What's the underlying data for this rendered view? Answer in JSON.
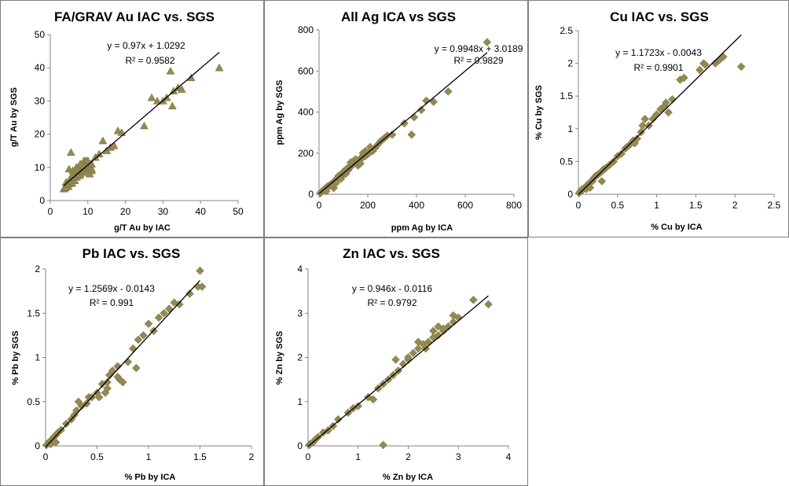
{
  "chart_data": [
    {
      "type": "scatter",
      "title": "FA/GRAV Au IAC vs. SGS",
      "xlabel": "g/T Au by IAC",
      "ylabel": "g/T Au by SGS",
      "xlim": [
        0,
        50
      ],
      "ylim": [
        0,
        50
      ],
      "xticks": [
        "0",
        "10",
        "20",
        "30",
        "40",
        "50"
      ],
      "yticks": [
        "0",
        "10",
        "20",
        "30",
        "40",
        "50"
      ],
      "equation": "y = 0.97x + 1.0292",
      "r2": "R² = 0.9582",
      "marker": "triangle",
      "trend": {
        "slope": 0.97,
        "intercept": 1.0292,
        "x0": 3.5,
        "x1": 45
      },
      "x": [
        3.6,
        4,
        4.4,
        4.8,
        5,
        5.2,
        5.5,
        5.8,
        6,
        6.2,
        6.5,
        6.8,
        7,
        7.2,
        7.5,
        7.8,
        8,
        8.2,
        8.5,
        8.8,
        9,
        9.3,
        9.6,
        10,
        10.3,
        10.7,
        11,
        4,
        4.5,
        5,
        5.5,
        6,
        6.5,
        7,
        7.5,
        8,
        8.5,
        9,
        9.5,
        10,
        10.5,
        11,
        4.2,
        5.5,
        6.7,
        8,
        9.2,
        10.5,
        5,
        6,
        7,
        8,
        9,
        10,
        11,
        12,
        13,
        14,
        15,
        16,
        17,
        18,
        19,
        25,
        27,
        28.5,
        30,
        31,
        32,
        32.5,
        32.8,
        34,
        35,
        37.5,
        45
      ],
      "y": [
        3.5,
        3.8,
        4.5,
        4.2,
        5,
        5.5,
        6,
        5.2,
        6.5,
        7,
        6,
        7.5,
        7,
        8,
        8.5,
        7.5,
        8,
        9,
        9.5,
        8.5,
        9,
        10,
        9.5,
        10,
        10.5,
        11,
        9.5,
        4,
        5,
        6,
        7,
        8,
        9,
        10,
        10,
        11,
        11,
        12,
        12,
        11,
        10,
        9,
        5.5,
        14.5,
        9.5,
        10.5,
        11.5,
        8,
        9.5,
        9,
        10,
        11,
        10.5,
        12,
        11,
        13,
        14,
        18,
        15,
        16,
        16.5,
        21,
        20.5,
        22.5,
        31,
        30,
        30,
        31,
        39,
        28.5,
        33,
        34,
        33.5,
        37,
        40
      ]
    },
    {
      "type": "scatter",
      "title": "All Ag ICA vs SGS",
      "xlabel": "ppm Ag by ICA",
      "ylabel": "ppm Ag by SGS",
      "xlim": [
        0,
        800
      ],
      "ylim": [
        0,
        800
      ],
      "xticks": [
        "0",
        "200",
        "400",
        "600",
        "800"
      ],
      "yticks": [
        "0",
        "200",
        "400",
        "600",
        "800"
      ],
      "equation": "y = 0.9948x + 3.0189",
      "r2": "R² = 0.9829",
      "marker": "diamond",
      "trend": {
        "slope": 0.9948,
        "intercept": 3.0189,
        "x0": 0,
        "x1": 690
      },
      "x": [
        5,
        10,
        15,
        20,
        25,
        30,
        35,
        40,
        45,
        50,
        55,
        60,
        65,
        70,
        75,
        80,
        85,
        90,
        95,
        100,
        105,
        110,
        115,
        120,
        125,
        130,
        135,
        140,
        150,
        160,
        170,
        180,
        190,
        200,
        210,
        220,
        230,
        240,
        250,
        260,
        270,
        280,
        300,
        350,
        380,
        390,
        420,
        440,
        470,
        530,
        690,
        60,
        80,
        100,
        120,
        140,
        160,
        180,
        70,
        90,
        110,
        130,
        150,
        170,
        190,
        210,
        30,
        50
      ],
      "y": [
        5,
        12,
        18,
        22,
        28,
        30,
        38,
        40,
        44,
        50,
        53,
        60,
        66,
        72,
        75,
        85,
        88,
        95,
        90,
        105,
        110,
        100,
        125,
        118,
        130,
        135,
        140,
        145,
        155,
        160,
        175,
        180,
        185,
        195,
        205,
        210,
        225,
        240,
        255,
        265,
        275,
        285,
        290,
        345,
        290,
        375,
        410,
        455,
        450,
        500,
        740,
        30,
        90,
        110,
        130,
        160,
        140,
        200,
        55,
        75,
        120,
        155,
        170,
        150,
        210,
        230,
        15,
        45
      ]
    },
    {
      "type": "scatter",
      "title": "Cu IAC vs. SGS",
      "xlabel": "% Cu by ICA",
      "ylabel": "% Cu by SGS",
      "xlim": [
        0,
        2.5
      ],
      "ylim": [
        0,
        2.5
      ],
      "xticks": [
        "0",
        "0.5",
        "1",
        "1.5",
        "2",
        "2.5"
      ],
      "yticks": [
        "0",
        "0.5",
        "1",
        "1.5",
        "2",
        "2.5"
      ],
      "equation": "y = 1.1723x - 0.0043",
      "r2": "R² = 0.9901",
      "marker": "diamond",
      "trend": {
        "slope": 1.1723,
        "intercept": -0.0043,
        "x0": 0,
        "x1": 2.08
      },
      "x": [
        0.01,
        0.03,
        0.05,
        0.08,
        0.1,
        0.12,
        0.15,
        0.18,
        0.2,
        0.22,
        0.25,
        0.28,
        0.3,
        0.32,
        0.35,
        0.4,
        0.45,
        0.5,
        0.55,
        0.6,
        0.62,
        0.65,
        0.7,
        0.72,
        0.75,
        0.8,
        0.82,
        0.85,
        0.9,
        0.95,
        1,
        1.05,
        1.1,
        1.12,
        1.15,
        1.2,
        1.3,
        1.35,
        1.55,
        1.6,
        1.62,
        1.75,
        1.8,
        1.85,
        2.08,
        0.05,
        0.1,
        0.15,
        0.3
      ],
      "y": [
        0.02,
        0.05,
        0.06,
        0.1,
        0.12,
        0.15,
        0.18,
        0.2,
        0.25,
        0.28,
        0.3,
        0.33,
        0.35,
        0.38,
        0.4,
        0.45,
        0.5,
        0.58,
        0.62,
        0.7,
        0.72,
        0.75,
        0.82,
        0.78,
        0.85,
        0.95,
        1.05,
        1.15,
        1.05,
        1.15,
        1.22,
        1.3,
        1.35,
        1.4,
        1.25,
        1.45,
        1.75,
        1.78,
        1.9,
        2,
        1.98,
        2,
        2.05,
        2.1,
        1.95,
        0.08,
        0.08,
        0.1,
        0.2
      ]
    },
    {
      "type": "scatter",
      "title": "Pb IAC vs. SGS",
      "xlabel": "% Pb by ICA",
      "ylabel": "% Pb by SGS",
      "xlim": [
        0,
        2
      ],
      "ylim": [
        0,
        2
      ],
      "xticks": [
        "0",
        "0.5",
        "1",
        "1.5",
        "2"
      ],
      "yticks": [
        "0",
        "0.5",
        "1",
        "1.5",
        "2"
      ],
      "equation": "y = 1.2569x - 0.0143",
      "r2": "R² = 0.991",
      "marker": "diamond",
      "trend": {
        "slope": 1.2569,
        "intercept": -0.0143,
        "x0": 0,
        "x1": 1.5
      },
      "x": [
        0.01,
        0.03,
        0.05,
        0.07,
        0.1,
        0.12,
        0.15,
        0.2,
        0.25,
        0.28,
        0.3,
        0.32,
        0.35,
        0.4,
        0.42,
        0.45,
        0.5,
        0.52,
        0.55,
        0.58,
        0.6,
        0.62,
        0.65,
        0.7,
        0.72,
        0.75,
        0.8,
        0.85,
        0.88,
        0.9,
        0.95,
        1,
        1.05,
        1.1,
        1.15,
        1.2,
        1.25,
        1.3,
        1.4,
        1.48,
        1.5,
        1.52,
        0.05,
        0.08,
        0.1,
        0.6,
        0.7
      ],
      "y": [
        0.01,
        0.04,
        0.06,
        0.08,
        0.12,
        0.15,
        0.18,
        0.25,
        0.3,
        0.35,
        0.4,
        0.5,
        0.45,
        0.48,
        0.55,
        0.55,
        0.6,
        0.55,
        0.7,
        0.6,
        0.65,
        0.8,
        0.85,
        0.9,
        0.75,
        0.72,
        0.95,
        1.1,
        0.88,
        1.2,
        1.25,
        1.38,
        1.3,
        1.45,
        1.5,
        1.55,
        1.62,
        1.6,
        1.72,
        1.8,
        1.98,
        1.8,
        0.02,
        0.1,
        0.04,
        0.72,
        0.78
      ]
    },
    {
      "type": "scatter",
      "title": "Zn IAC vs. SGS",
      "xlabel": "% Zn by ICA",
      "ylabel": "% Zn by SGS",
      "xlim": [
        0,
        4
      ],
      "ylim": [
        0,
        4
      ],
      "xticks": [
        "0",
        "1",
        "2",
        "3",
        "4"
      ],
      "yticks": [
        "0",
        "1",
        "2",
        "3",
        "4"
      ],
      "equation": "y = 0.946x - 0.0116",
      "r2": "R² = 0.9792",
      "marker": "diamond",
      "trend": {
        "slope": 0.946,
        "intercept": -0.0116,
        "x0": 0,
        "x1": 3.6
      },
      "x": [
        0.02,
        0.05,
        0.1,
        0.15,
        0.2,
        0.3,
        0.4,
        0.5,
        0.6,
        0.8,
        0.9,
        1,
        1.2,
        1.3,
        1.4,
        1.5,
        1.6,
        1.7,
        1.8,
        1.9,
        2,
        2.1,
        2.2,
        2.3,
        2.4,
        2.5,
        2.6,
        2.7,
        2.8,
        2.9,
        3,
        3.3,
        3.6,
        1.5,
        2.2,
        2.5,
        2.7,
        2.9,
        1.75,
        2.0,
        2.35,
        2.6
      ],
      "y": [
        0.02,
        0.05,
        0.08,
        0.15,
        0.2,
        0.3,
        0.35,
        0.45,
        0.6,
        0.75,
        0.85,
        0.9,
        1.1,
        1.05,
        1.3,
        1.4,
        1.5,
        1.6,
        1.7,
        1.85,
        1.95,
        2.1,
        2.2,
        2.3,
        2.35,
        2.45,
        2.5,
        2.6,
        2.7,
        2.8,
        2.9,
        3.3,
        3.2,
        0.02,
        2.35,
        2.6,
        2.65,
        2.95,
        1.95,
        2.0,
        2.2,
        2.7
      ]
    }
  ]
}
